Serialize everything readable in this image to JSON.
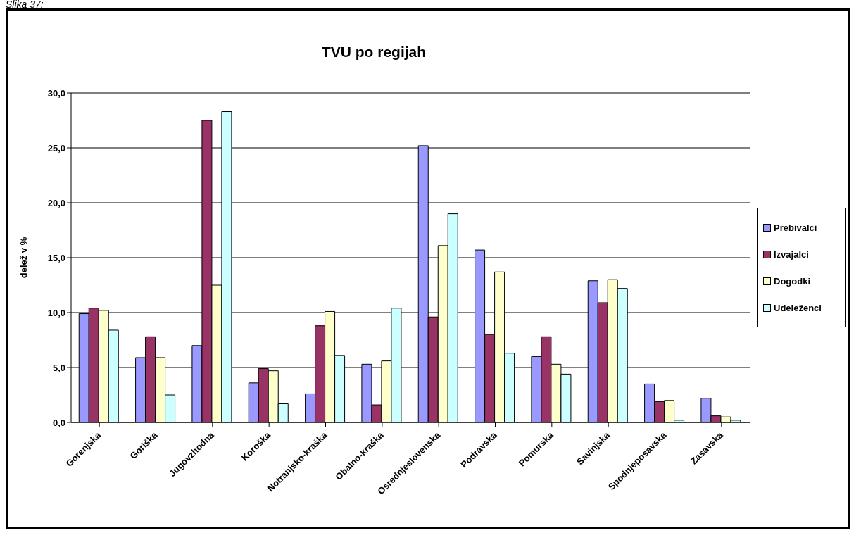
{
  "chart_data": {
    "type": "bar",
    "title": "TVU po regijah",
    "ylabel": "delež v %",
    "annotations": [
      "Slika 37:"
    ],
    "categories": [
      "Gorenjska",
      "Goriška",
      "Jugovzhodna",
      "Koroška",
      "Notranjsko-kraška",
      "Obalno-kraška",
      "Osrednjeslovenska",
      "Podravska",
      "Pomurska",
      "Savinjska",
      "Spodnjeposavska",
      "Zasavska"
    ],
    "series": [
      {
        "name": "Prebivalci",
        "color": "#9999ff",
        "values": [
          9.9,
          5.9,
          7.0,
          3.6,
          2.6,
          5.3,
          25.2,
          15.7,
          6.0,
          12.9,
          3.5,
          2.2
        ]
      },
      {
        "name": "Izvajalci",
        "color": "#993366",
        "values": [
          10.4,
          7.8,
          27.5,
          4.9,
          8.8,
          1.6,
          9.6,
          8.0,
          7.8,
          10.9,
          1.9,
          0.6
        ]
      },
      {
        "name": "Dogodki",
        "color": "#ffffcc",
        "values": [
          10.2,
          5.9,
          12.5,
          4.7,
          10.1,
          5.6,
          16.1,
          13.7,
          5.3,
          13.0,
          2.0,
          0.5
        ]
      },
      {
        "name": "Udeleženci",
        "color": "#ccffff",
        "values": [
          8.4,
          2.5,
          28.3,
          1.7,
          6.1,
          10.4,
          19.0,
          6.3,
          4.4,
          12.2,
          0.2,
          0.2
        ]
      }
    ],
    "ylim": [
      0,
      30
    ],
    "yticks": [
      {
        "value": 0,
        "label": "0,0"
      },
      {
        "value": 5,
        "label": "5,0"
      },
      {
        "value": 10,
        "label": "10,0"
      },
      {
        "value": 15,
        "label": "15,0"
      },
      {
        "value": 20,
        "label": "20,0"
      },
      {
        "value": 25,
        "label": "25,0"
      },
      {
        "value": 30,
        "label": "30,0"
      }
    ],
    "grid": "y",
    "legend": "right"
  }
}
